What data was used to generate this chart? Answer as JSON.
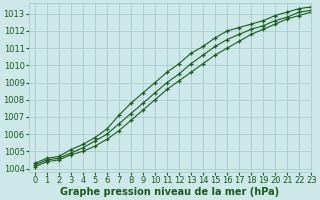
{
  "background_color": "#cce8e8",
  "grid_color": "#aacccc",
  "line_color": "#1a5c1a",
  "marker": "+",
  "xlabel": "Graphe pression niveau de la mer (hPa)",
  "xlabel_fontsize": 7.0,
  "tick_fontsize": 6.0,
  "ylim": [
    1003.8,
    1013.6
  ],
  "xlim": [
    -0.5,
    23
  ],
  "yticks": [
    1004,
    1005,
    1006,
    1007,
    1008,
    1009,
    1010,
    1011,
    1012,
    1013
  ],
  "xticks": [
    0,
    1,
    2,
    3,
    4,
    5,
    6,
    7,
    8,
    9,
    10,
    11,
    12,
    13,
    14,
    15,
    16,
    17,
    18,
    19,
    20,
    21,
    22,
    23
  ],
  "series": [
    [
      1004.3,
      1004.6,
      1004.7,
      1005.1,
      1005.4,
      1005.8,
      1006.3,
      1007.1,
      1007.8,
      1008.4,
      1009.0,
      1009.6,
      1010.1,
      1010.7,
      1011.1,
      1011.6,
      1012.0,
      1012.2,
      1012.4,
      1012.6,
      1012.9,
      1013.1,
      1013.3,
      1013.4
    ],
    [
      1004.2,
      1004.5,
      1004.6,
      1004.9,
      1005.2,
      1005.6,
      1006.0,
      1006.6,
      1007.2,
      1007.8,
      1008.4,
      1009.0,
      1009.5,
      1010.1,
      1010.6,
      1011.1,
      1011.5,
      1011.8,
      1012.1,
      1012.3,
      1012.6,
      1012.8,
      1013.1,
      1013.2
    ],
    [
      1004.1,
      1004.4,
      1004.5,
      1004.8,
      1005.0,
      1005.3,
      1005.7,
      1006.2,
      1006.8,
      1007.4,
      1008.0,
      1008.6,
      1009.1,
      1009.6,
      1010.1,
      1010.6,
      1011.0,
      1011.4,
      1011.8,
      1012.1,
      1012.4,
      1012.7,
      1012.9,
      1013.1
    ]
  ]
}
